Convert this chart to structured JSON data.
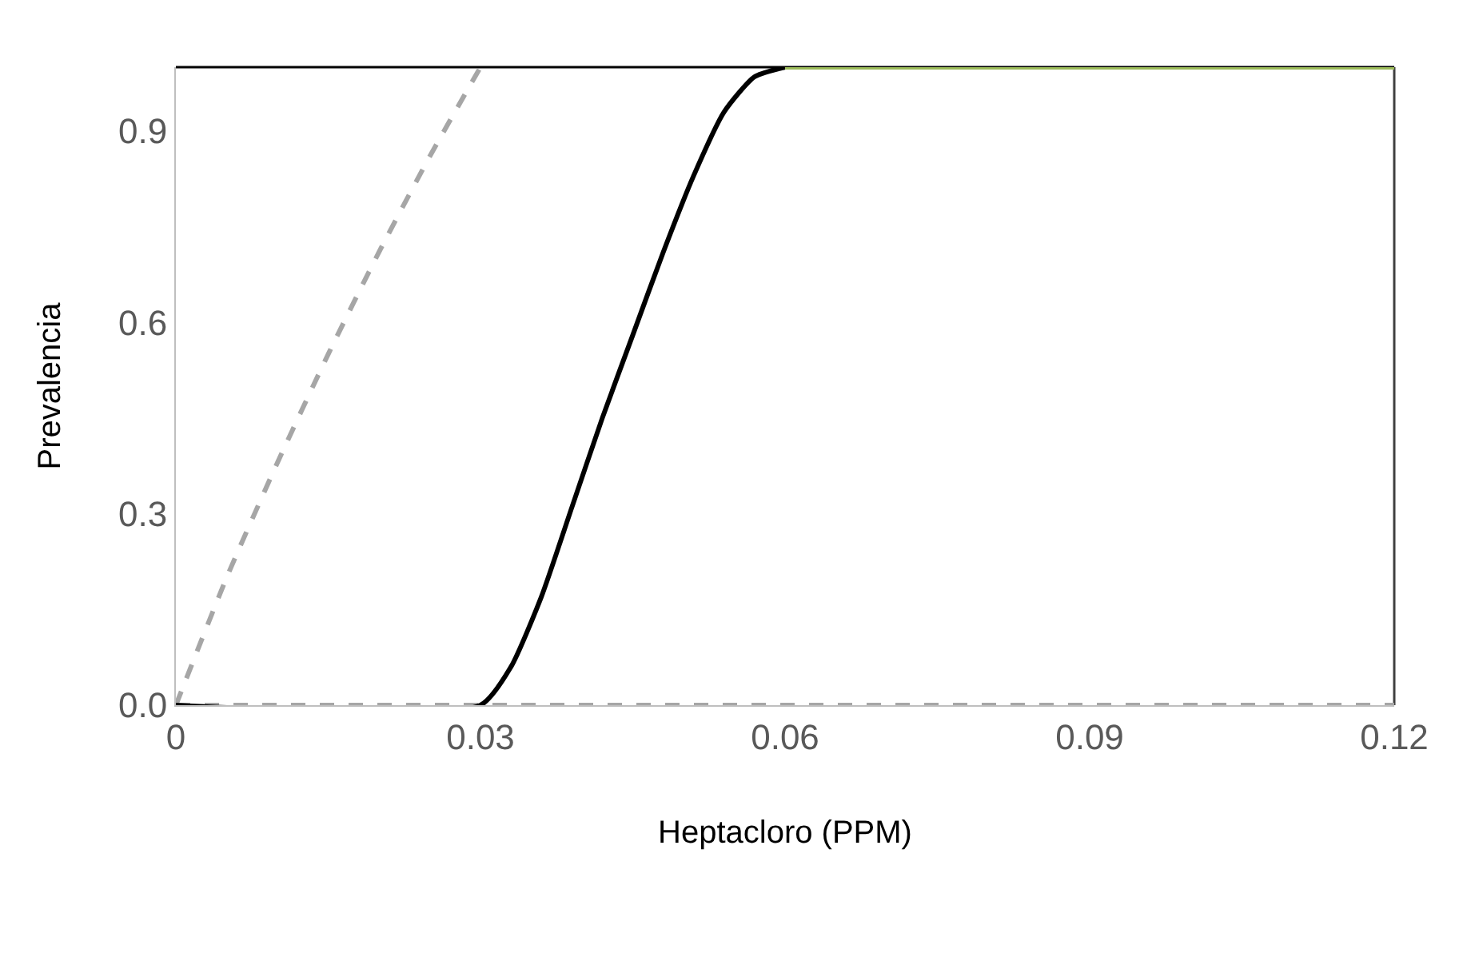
{
  "chart_data": {
    "type": "line",
    "xlabel": "Heptacloro (PPM)",
    "ylabel": "Prevalencia",
    "xlim": [
      0,
      0.12
    ],
    "xticks": [
      0,
      0.03,
      0.06,
      0.09,
      0.12
    ],
    "ylim": [
      0,
      1
    ],
    "yticks": [
      {
        "value": 0,
        "label": "0.0"
      },
      0.3,
      0.6,
      0.9
    ],
    "grid": false,
    "marker": "none",
    "series": [
      {
        "color": "#a6a6a6",
        "line_style": "dashed",
        "x": [
          0,
          0.005,
          0.01,
          0.015,
          0.02,
          0.025,
          0.03
        ],
        "values": [
          0,
          0.2,
          0.38,
          0.55,
          0.71,
          0.86,
          1
        ]
      },
      {
        "color": "#a6a6a6",
        "line_style": "dashed",
        "x": [
          0,
          0.12
        ],
        "values": [
          0,
          0
        ]
      },
      {
        "color": "#000000",
        "line_style": "solid",
        "x": [
          0,
          0.03,
          0.033,
          0.036,
          0.039,
          0.042,
          0.045,
          0.048,
          0.051,
          0.054,
          0.057,
          0.06
        ],
        "values": [
          0,
          0,
          0.06,
          0.17,
          0.31,
          0.45,
          0.58,
          0.71,
          0.83,
          0.93,
          0.985,
          1
        ]
      },
      {
        "color": "#9bbb59",
        "line_style": "solid",
        "x": [
          0.06,
          0.12
        ],
        "values": [
          1,
          1
        ]
      }
    ]
  }
}
